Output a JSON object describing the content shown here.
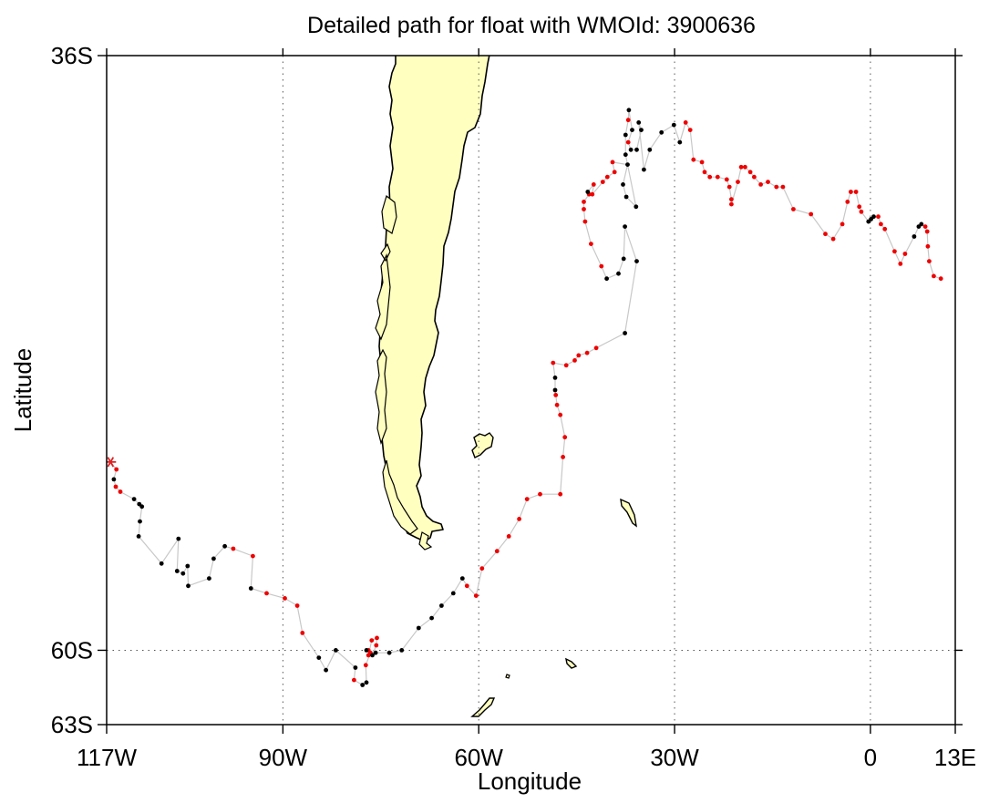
{
  "title": "Detailed path for float with WMOId: 3900636",
  "xlabel": "Longitude",
  "ylabel": "Latitude",
  "x_ticks": [
    {
      "label": "117W",
      "lon": -117
    },
    {
      "label": "90W",
      "lon": -90
    },
    {
      "label": "60W",
      "lon": -60
    },
    {
      "label": "30W",
      "lon": -30
    },
    {
      "label": "0",
      "lon": 0
    },
    {
      "label": "13E",
      "lon": 13
    }
  ],
  "y_ticks": [
    {
      "label": "36S",
      "lat": -36
    },
    {
      "label": "60S",
      "lat": -60
    },
    {
      "label": "63S",
      "lat": -63
    }
  ],
  "colors": {
    "land": "#ffffc0",
    "coast": "#000000",
    "track_line": "#c8c8c8",
    "point_black": "#000000",
    "point_red": "#ee0000",
    "marker_start": "#dd2222",
    "grid": "#555555"
  },
  "chart_data": {
    "type": "scatter",
    "map_projection": "equirectangular",
    "lon_range": [
      -117,
      13
    ],
    "lat_range": [
      -63,
      -36
    ],
    "grid": "dotted at 90W, 60W, 30W, 0 and 60S",
    "start_marker": {
      "symbol": "asterisk",
      "lon": -116.4,
      "lat": -52.4
    },
    "track": [
      {
        "lon": -115.5,
        "lat": -52.7,
        "c": "r"
      },
      {
        "lon": -115.9,
        "lat": -53.1,
        "c": "k"
      },
      {
        "lon": -115.6,
        "lat": -53.4,
        "c": "r"
      },
      {
        "lon": -114.9,
        "lat": -53.6,
        "c": "r"
      },
      {
        "lon": -112.8,
        "lat": -53.9,
        "c": "k"
      },
      {
        "lon": -112.0,
        "lat": -54.1,
        "c": "k"
      },
      {
        "lon": -111.6,
        "lat": -54.2,
        "c": "k"
      },
      {
        "lon": -111.9,
        "lat": -54.8,
        "c": "k"
      },
      {
        "lon": -112.1,
        "lat": -55.4,
        "c": "k"
      },
      {
        "lon": -108.6,
        "lat": -56.5,
        "c": "k"
      },
      {
        "lon": -106.0,
        "lat": -55.5,
        "c": "k"
      },
      {
        "lon": -106.2,
        "lat": -56.8,
        "c": "k"
      },
      {
        "lon": -105.3,
        "lat": -56.9,
        "c": "k"
      },
      {
        "lon": -104.6,
        "lat": -56.6,
        "c": "k"
      },
      {
        "lon": -104.5,
        "lat": -57.4,
        "c": "k"
      },
      {
        "lon": -101.3,
        "lat": -57.1,
        "c": "k"
      },
      {
        "lon": -100.6,
        "lat": -56.3,
        "c": "k"
      },
      {
        "lon": -98.9,
        "lat": -55.8,
        "c": "k"
      },
      {
        "lon": -97.6,
        "lat": -55.9,
        "c": "r"
      },
      {
        "lon": -94.6,
        "lat": -56.2,
        "c": "r"
      },
      {
        "lon": -94.9,
        "lat": -57.5,
        "c": "k"
      },
      {
        "lon": -92.5,
        "lat": -57.7,
        "c": "r"
      },
      {
        "lon": -89.7,
        "lat": -57.9,
        "c": "r"
      },
      {
        "lon": -87.8,
        "lat": -58.2,
        "c": "r"
      },
      {
        "lon": -87.0,
        "lat": -59.3,
        "c": "r"
      },
      {
        "lon": -84.5,
        "lat": -60.3,
        "c": "k"
      },
      {
        "lon": -83.4,
        "lat": -60.8,
        "c": "k"
      },
      {
        "lon": -81.9,
        "lat": -60.0,
        "c": "k"
      },
      {
        "lon": -78.9,
        "lat": -60.7,
        "c": "k"
      },
      {
        "lon": -79.1,
        "lat": -61.2,
        "c": "r"
      },
      {
        "lon": -77.8,
        "lat": -61.4,
        "c": "k"
      },
      {
        "lon": -77.2,
        "lat": -61.3,
        "c": "k"
      },
      {
        "lon": -77.3,
        "lat": -60.6,
        "c": "r"
      },
      {
        "lon": -76.6,
        "lat": -60.1,
        "c": "r"
      },
      {
        "lon": -76.9,
        "lat": -60.2,
        "c": "r"
      },
      {
        "lon": -76.4,
        "lat": -59.6,
        "c": "r"
      },
      {
        "lon": -75.6,
        "lat": -59.5,
        "c": "r"
      },
      {
        "lon": -75.7,
        "lat": -59.8,
        "c": "r"
      },
      {
        "lon": -76.3,
        "lat": -60.2,
        "c": "k"
      },
      {
        "lon": -76.9,
        "lat": -60.0,
        "c": "r"
      },
      {
        "lon": -77.2,
        "lat": -60.0,
        "c": "k"
      },
      {
        "lon": -75.8,
        "lat": -60.1,
        "c": "k"
      },
      {
        "lon": -73.7,
        "lat": -60.1,
        "c": "k"
      },
      {
        "lon": -71.8,
        "lat": -60.0,
        "c": "k"
      },
      {
        "lon": -69.2,
        "lat": -59.1,
        "c": "k"
      },
      {
        "lon": -67.2,
        "lat": -58.7,
        "c": "k"
      },
      {
        "lon": -65.7,
        "lat": -58.2,
        "c": "k"
      },
      {
        "lon": -63.9,
        "lat": -57.7,
        "c": "k"
      },
      {
        "lon": -62.5,
        "lat": -57.1,
        "c": "k"
      },
      {
        "lon": -61.8,
        "lat": -57.4,
        "c": "r"
      },
      {
        "lon": -60.4,
        "lat": -57.8,
        "c": "r"
      },
      {
        "lon": -59.5,
        "lat": -56.7,
        "c": "r"
      },
      {
        "lon": -57.2,
        "lat": -56.0,
        "c": "r"
      },
      {
        "lon": -55.4,
        "lat": -55.4,
        "c": "r"
      },
      {
        "lon": -53.8,
        "lat": -54.7,
        "c": "r"
      },
      {
        "lon": -52.6,
        "lat": -53.9,
        "c": "r"
      },
      {
        "lon": -50.6,
        "lat": -53.7,
        "c": "r"
      },
      {
        "lon": -47.5,
        "lat": -53.7,
        "c": "r"
      },
      {
        "lon": -47.1,
        "lat": -52.2,
        "c": "r"
      },
      {
        "lon": -46.8,
        "lat": -51.4,
        "c": "r"
      },
      {
        "lon": -47.5,
        "lat": -50.5,
        "c": "r"
      },
      {
        "lon": -48.0,
        "lat": -50.1,
        "c": "r"
      },
      {
        "lon": -48.2,
        "lat": -49.7,
        "c": "r"
      },
      {
        "lon": -48.3,
        "lat": -49.5,
        "c": "k"
      },
      {
        "lon": -48.3,
        "lat": -49.0,
        "c": "k"
      },
      {
        "lon": -48.6,
        "lat": -48.4,
        "c": "r"
      },
      {
        "lon": -46.6,
        "lat": -48.5,
        "c": "r"
      },
      {
        "lon": -45.3,
        "lat": -48.3,
        "c": "r"
      },
      {
        "lon": -44.7,
        "lat": -48.1,
        "c": "r"
      },
      {
        "lon": -43.4,
        "lat": -48.0,
        "c": "r"
      },
      {
        "lon": -42.0,
        "lat": -47.8,
        "c": "r"
      },
      {
        "lon": -37.6,
        "lat": -47.2,
        "c": "k"
      },
      {
        "lon": -35.8,
        "lat": -44.3,
        "c": "k"
      },
      {
        "lon": -37.6,
        "lat": -42.9,
        "c": "k"
      },
      {
        "lon": -37.8,
        "lat": -44.2,
        "c": "k"
      },
      {
        "lon": -38.6,
        "lat": -44.8,
        "c": "k"
      },
      {
        "lon": -40.4,
        "lat": -45.0,
        "c": "k"
      },
      {
        "lon": -41.2,
        "lat": -44.5,
        "c": "r"
      },
      {
        "lon": -42.8,
        "lat": -43.6,
        "c": "r"
      },
      {
        "lon": -43.7,
        "lat": -42.7,
        "c": "r"
      },
      {
        "lon": -43.9,
        "lat": -42.2,
        "c": "r"
      },
      {
        "lon": -43.9,
        "lat": -41.9,
        "c": "r"
      },
      {
        "lon": -43.1,
        "lat": -41.6,
        "c": "r"
      },
      {
        "lon": -43.3,
        "lat": -41.5,
        "c": "k"
      },
      {
        "lon": -42.4,
        "lat": -41.2,
        "c": "r"
      },
      {
        "lon": -42.6,
        "lat": -41.6,
        "c": "r"
      },
      {
        "lon": -41.0,
        "lat": -41.1,
        "c": "r"
      },
      {
        "lon": -40.3,
        "lat": -40.9,
        "c": "r"
      },
      {
        "lon": -39.2,
        "lat": -40.7,
        "c": "r"
      },
      {
        "lon": -39.5,
        "lat": -40.3,
        "c": "r"
      },
      {
        "lon": -37.2,
        "lat": -40.4,
        "c": "k"
      },
      {
        "lon": -37.9,
        "lat": -41.2,
        "c": "k"
      },
      {
        "lon": -37.4,
        "lat": -41.7,
        "c": "k"
      },
      {
        "lon": -35.9,
        "lat": -42.1,
        "c": "k"
      },
      {
        "lon": -37.5,
        "lat": -40.0,
        "c": "k"
      },
      {
        "lon": -37.5,
        "lat": -39.2,
        "c": "k"
      },
      {
        "lon": -37.1,
        "lat": -38.6,
        "c": "r"
      },
      {
        "lon": -37.0,
        "lat": -38.2,
        "c": "k"
      },
      {
        "lon": -36.5,
        "lat": -39.0,
        "c": "k"
      },
      {
        "lon": -37.1,
        "lat": -39.5,
        "c": "r"
      },
      {
        "lon": -36.7,
        "lat": -39.8,
        "c": "k"
      },
      {
        "lon": -35.8,
        "lat": -39.8,
        "c": "k"
      },
      {
        "lon": -35.1,
        "lat": -39.0,
        "c": "k"
      },
      {
        "lon": -35.5,
        "lat": -38.7,
        "c": "k"
      },
      {
        "lon": -34.7,
        "lat": -40.6,
        "c": "k"
      },
      {
        "lon": -33.8,
        "lat": -39.8,
        "c": "k"
      },
      {
        "lon": -32.0,
        "lat": -39.1,
        "c": "k"
      },
      {
        "lon": -30.1,
        "lat": -38.8,
        "c": "k"
      },
      {
        "lon": -29.2,
        "lat": -39.5,
        "c": "k"
      },
      {
        "lon": -28.3,
        "lat": -38.7,
        "c": "r"
      },
      {
        "lon": -27.6,
        "lat": -39.0,
        "c": "r"
      },
      {
        "lon": -27.1,
        "lat": -40.2,
        "c": "r"
      },
      {
        "lon": -25.8,
        "lat": -40.3,
        "c": "r"
      },
      {
        "lon": -25.4,
        "lat": -40.7,
        "c": "r"
      },
      {
        "lon": -24.6,
        "lat": -40.9,
        "c": "r"
      },
      {
        "lon": -23.4,
        "lat": -40.9,
        "c": "r"
      },
      {
        "lon": -22.0,
        "lat": -41.0,
        "c": "r"
      },
      {
        "lon": -21.6,
        "lat": -41.3,
        "c": "r"
      },
      {
        "lon": -21.3,
        "lat": -41.8,
        "c": "r"
      },
      {
        "lon": -21.3,
        "lat": -42.0,
        "c": "r"
      },
      {
        "lon": -20.3,
        "lat": -41.1,
        "c": "r"
      },
      {
        "lon": -19.8,
        "lat": -40.5,
        "c": "r"
      },
      {
        "lon": -19.2,
        "lat": -40.5,
        "c": "r"
      },
      {
        "lon": -18.4,
        "lat": -40.7,
        "c": "r"
      },
      {
        "lon": -17.8,
        "lat": -40.9,
        "c": "r"
      },
      {
        "lon": -16.8,
        "lat": -41.2,
        "c": "r"
      },
      {
        "lon": -15.7,
        "lat": -41.1,
        "c": "r"
      },
      {
        "lon": -14.4,
        "lat": -41.3,
        "c": "r"
      },
      {
        "lon": -13.4,
        "lat": -41.3,
        "c": "r"
      },
      {
        "lon": -11.8,
        "lat": -42.2,
        "c": "r"
      },
      {
        "lon": -9.1,
        "lat": -42.4,
        "c": "r"
      },
      {
        "lon": -6.9,
        "lat": -43.2,
        "c": "r"
      },
      {
        "lon": -5.7,
        "lat": -43.4,
        "c": "r"
      },
      {
        "lon": -4.3,
        "lat": -42.8,
        "c": "r"
      },
      {
        "lon": -3.5,
        "lat": -41.9,
        "c": "r"
      },
      {
        "lon": -3.0,
        "lat": -41.5,
        "c": "r"
      },
      {
        "lon": -2.2,
        "lat": -41.5,
        "c": "r"
      },
      {
        "lon": -1.7,
        "lat": -42.1,
        "c": "r"
      },
      {
        "lon": -1.4,
        "lat": -42.3,
        "c": "r"
      },
      {
        "lon": -0.3,
        "lat": -42.7,
        "c": "k"
      },
      {
        "lon": 0.1,
        "lat": -42.6,
        "c": "k"
      },
      {
        "lon": 0.5,
        "lat": -42.5,
        "c": "k"
      },
      {
        "lon": 1.2,
        "lat": -42.5,
        "c": "r"
      },
      {
        "lon": 1.6,
        "lat": -42.8,
        "c": "r"
      },
      {
        "lon": 2.2,
        "lat": -43.0,
        "c": "r"
      },
      {
        "lon": 3.7,
        "lat": -43.9,
        "c": "r"
      },
      {
        "lon": 4.6,
        "lat": -44.4,
        "c": "r"
      },
      {
        "lon": 5.3,
        "lat": -44.0,
        "c": "r"
      },
      {
        "lon": 6.7,
        "lat": -43.3,
        "c": "k"
      },
      {
        "lon": 7.4,
        "lat": -42.9,
        "c": "k"
      },
      {
        "lon": 7.8,
        "lat": -42.8,
        "c": "k"
      },
      {
        "lon": 8.4,
        "lat": -42.9,
        "c": "r"
      },
      {
        "lon": 8.7,
        "lat": -43.1,
        "c": "r"
      },
      {
        "lon": 8.8,
        "lat": -43.7,
        "c": "r"
      },
      {
        "lon": 9.0,
        "lat": -44.3,
        "c": "r"
      },
      {
        "lon": 9.7,
        "lat": -44.9,
        "c": "r"
      },
      {
        "lon": 10.8,
        "lat": -45.0,
        "c": "r"
      }
    ]
  }
}
